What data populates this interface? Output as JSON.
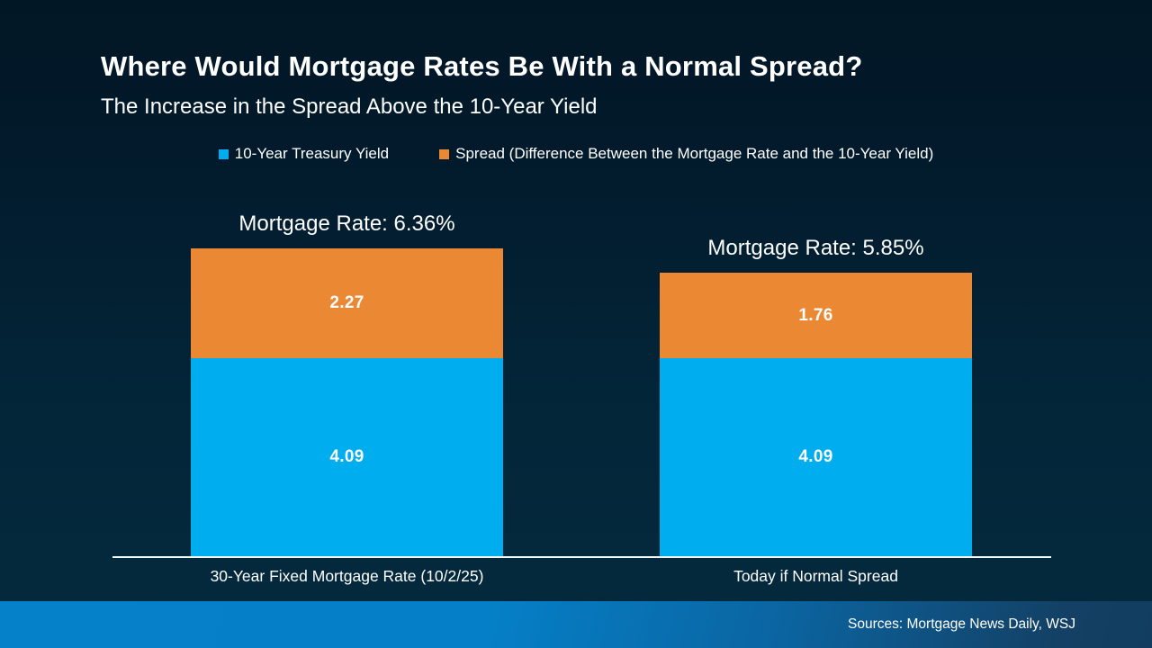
{
  "header": {
    "title": "Where Would Mortgage Rates Be With a Normal Spread?",
    "subtitle": "The Increase in the Spread Above the 10-Year Yield"
  },
  "legend": {
    "items": [
      {
        "label": "10-Year Treasury Yield",
        "color": "#00aeef"
      },
      {
        "label": "Spread (Difference Between the Mortgage Rate and the 10-Year Yield)",
        "color": "#eb8834"
      }
    ]
  },
  "chart_data": {
    "type": "bar",
    "stacked": true,
    "orientation": "vertical",
    "categories": [
      "30-Year Fixed Mortgage Rate (10/2/25)",
      "Today if Normal Spread"
    ],
    "series": [
      {
        "name": "10-Year Treasury Yield",
        "color": "#00aeef",
        "values": [
          4.09,
          4.09
        ]
      },
      {
        "name": "Spread (Difference Between the Mortgage Rate and the 10-Year Yield)",
        "color": "#eb8834",
        "values": [
          2.27,
          1.76
        ]
      }
    ],
    "totals": [
      6.36,
      5.85
    ],
    "bar_titles": [
      "Mortgage Rate: 6.36%",
      "Mortgage Rate: 5.85%"
    ],
    "ylim": [
      0,
      6.36
    ],
    "grid": false,
    "legend_position": "top",
    "baseline_axis": true
  },
  "footer": {
    "sources": "Sources: Mortgage News Daily, WSJ"
  },
  "colors": {
    "background_top": "#02192a",
    "background_bottom": "#04293d",
    "bar_blue": "#00aeef",
    "bar_orange": "#eb8834",
    "footer_left": "#0581c9",
    "footer_right": "#123d60",
    "text": "#ffffff",
    "axis_line": "#f2f7fa"
  }
}
